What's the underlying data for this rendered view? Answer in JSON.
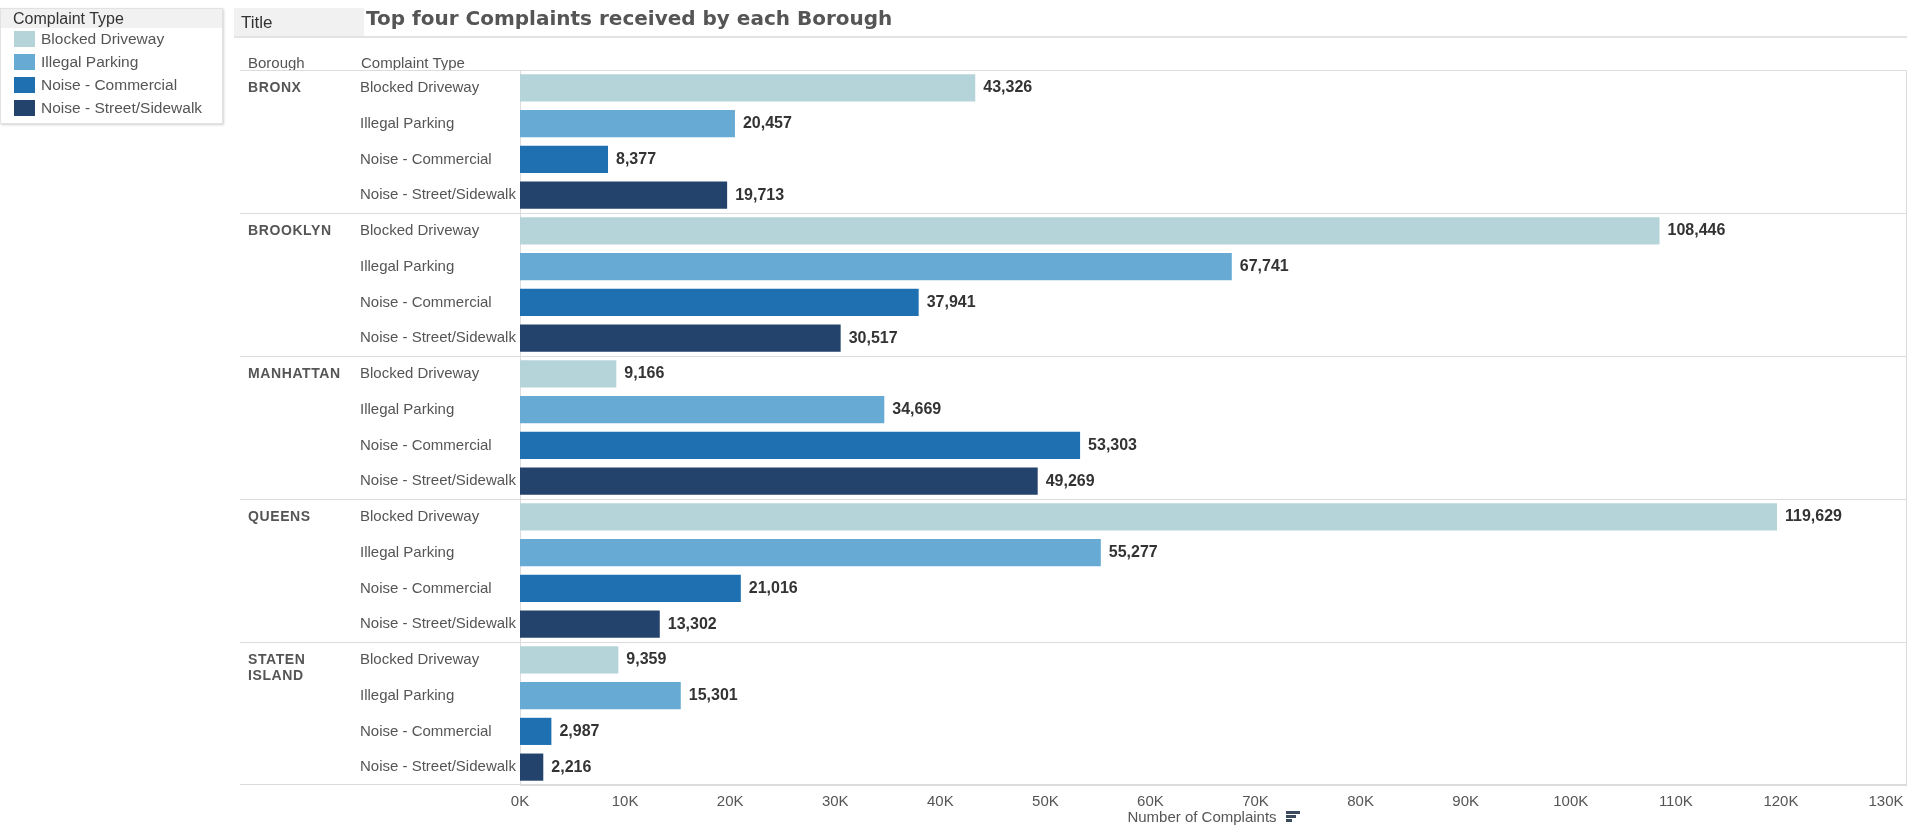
{
  "chart_data": [
    {
      "type": "bar",
      "orientation": "horizontal",
      "title": "Top four Complaints received by each Borough",
      "ylabel": "BRONX",
      "categories": [
        "Blocked Driveway",
        "Illegal Parking",
        "Noise - Commercial",
        "Noise - Street/Sidewalk"
      ],
      "series": [
        {
          "name": "Blocked Driveway",
          "color": "#b4d4da",
          "values": [
            43326,
            null,
            null,
            null
          ],
          "value_labels": [
            "43,326",
            null,
            null,
            null
          ]
        },
        {
          "name": "Illegal Parking",
          "color": "#67abd4",
          "values": [
            null,
            20457,
            null,
            null
          ],
          "value_labels": [
            null,
            "20,457",
            null,
            null
          ]
        },
        {
          "name": "Noise - Commercial",
          "color": "#1f70b0",
          "values": [
            null,
            null,
            8377,
            null
          ],
          "value_labels": [
            null,
            null,
            "8,377",
            null
          ]
        },
        {
          "name": "Noise - Street/Sidewalk",
          "color": "#23426c",
          "values": [
            null,
            null,
            null,
            19713
          ],
          "value_labels": [
            null,
            null,
            null,
            "19,713"
          ]
        }
      ],
      "xlim": [
        0,
        132000
      ],
      "tick_labels": "y",
      "legend": "top left",
      "legend_title": "Complaint Type",
      "annotations": [
        "Title",
        "Borough",
        "Complaint Type"
      ]
    },
    {
      "type": "bar",
      "orientation": "horizontal",
      "ylabel": "BROOKLYN",
      "categories": [
        "Blocked Driveway",
        "Illegal Parking",
        "Noise - Commercial",
        "Noise - Street/Sidewalk"
      ],
      "series": [
        {
          "color": "#b4d4da",
          "values": [
            108446,
            null,
            null,
            null
          ],
          "value_labels": [
            "108,446",
            null,
            null,
            null
          ]
        },
        {
          "color": "#67abd4",
          "values": [
            null,
            67741,
            null,
            null
          ],
          "value_labels": [
            null,
            "67,741",
            null,
            null
          ]
        },
        {
          "color": "#1f70b0",
          "values": [
            null,
            null,
            37941,
            null
          ],
          "value_labels": [
            null,
            null,
            "37,941",
            null
          ]
        },
        {
          "color": "#23426c",
          "values": [
            null,
            null,
            null,
            30517
          ],
          "value_labels": [
            null,
            null,
            null,
            "30,517"
          ]
        }
      ],
      "xlim": [
        0,
        132000
      ],
      "tick_labels": "y"
    },
    {
      "type": "bar",
      "orientation": "horizontal",
      "ylabel": "MANHATTAN",
      "categories": [
        "Blocked Driveway",
        "Illegal Parking",
        "Noise - Commercial",
        "Noise - Street/Sidewalk"
      ],
      "series": [
        {
          "color": "#b4d4da",
          "values": [
            9166,
            null,
            null,
            null
          ],
          "value_labels": [
            "9,166",
            null,
            null,
            null
          ]
        },
        {
          "color": "#67abd4",
          "values": [
            null,
            34669,
            null,
            null
          ],
          "value_labels": [
            null,
            "34,669",
            null,
            null
          ]
        },
        {
          "color": "#1f70b0",
          "values": [
            null,
            null,
            53303,
            null
          ],
          "value_labels": [
            null,
            null,
            "53,303",
            null
          ]
        },
        {
          "color": "#23426c",
          "values": [
            null,
            null,
            null,
            49269
          ],
          "value_labels": [
            null,
            null,
            null,
            "49,269"
          ]
        }
      ],
      "xlim": [
        0,
        132000
      ],
      "tick_labels": "y"
    },
    {
      "type": "bar",
      "orientation": "horizontal",
      "ylabel": "QUEENS",
      "categories": [
        "Blocked Driveway",
        "Illegal Parking",
        "Noise - Commercial",
        "Noise - Street/Sidewalk"
      ],
      "series": [
        {
          "color": "#b4d4da",
          "values": [
            119629,
            null,
            null,
            null
          ],
          "value_labels": [
            "119,629",
            null,
            null,
            null
          ]
        },
        {
          "color": "#67abd4",
          "values": [
            null,
            55277,
            null,
            null
          ],
          "value_labels": [
            null,
            "55,277",
            null,
            null
          ]
        },
        {
          "color": "#1f70b0",
          "values": [
            null,
            null,
            21016,
            null
          ],
          "value_labels": [
            null,
            null,
            "21,016",
            null
          ]
        },
        {
          "color": "#23426c",
          "values": [
            null,
            null,
            null,
            13302
          ],
          "value_labels": [
            null,
            null,
            null,
            "13,302"
          ]
        }
      ],
      "xlim": [
        0,
        132000
      ],
      "tick_labels": "y"
    },
    {
      "type": "bar",
      "orientation": "horizontal",
      "ylabel": "STATEN ISLAND",
      "categories": [
        "Blocked Driveway",
        "Illegal Parking",
        "Noise - Commercial",
        "Noise - Street/Sidewalk"
      ],
      "series": [
        {
          "color": "#b4d4da",
          "values": [
            9359,
            null,
            null,
            null
          ],
          "value_labels": [
            "9,359",
            null,
            null,
            null
          ]
        },
        {
          "color": "#67abd4",
          "values": [
            null,
            15301,
            null,
            null
          ],
          "value_labels": [
            null,
            "15,301",
            null,
            null
          ]
        },
        {
          "color": "#1f70b0",
          "values": [
            null,
            null,
            2987,
            null
          ],
          "value_labels": [
            null,
            null,
            "2,987",
            null
          ]
        },
        {
          "color": "#23426c",
          "values": [
            null,
            null,
            null,
            2216
          ],
          "value_labels": [
            null,
            null,
            null,
            "2,216"
          ]
        }
      ],
      "xlim": [
        0,
        132000
      ],
      "xticks": [
        {
          "value": 0,
          "label": "0K"
        },
        {
          "value": 10000,
          "label": "10K"
        },
        {
          "value": 20000,
          "label": "20K"
        },
        {
          "value": 30000,
          "label": "30K"
        },
        {
          "value": 40000,
          "label": "40K"
        },
        {
          "value": 50000,
          "label": "50K"
        },
        {
          "value": 60000,
          "label": "60K"
        },
        {
          "value": 70000,
          "label": "70K"
        },
        {
          "value": 80000,
          "label": "80K"
        },
        {
          "value": 90000,
          "label": "90K"
        },
        {
          "value": 100000,
          "label": "100K"
        },
        {
          "value": 110000,
          "label": "110K"
        },
        {
          "value": 120000,
          "label": "120K"
        },
        {
          "value": 130000,
          "label": "130K"
        }
      ],
      "xlabel": "Number of Complaints"
    }
  ]
}
